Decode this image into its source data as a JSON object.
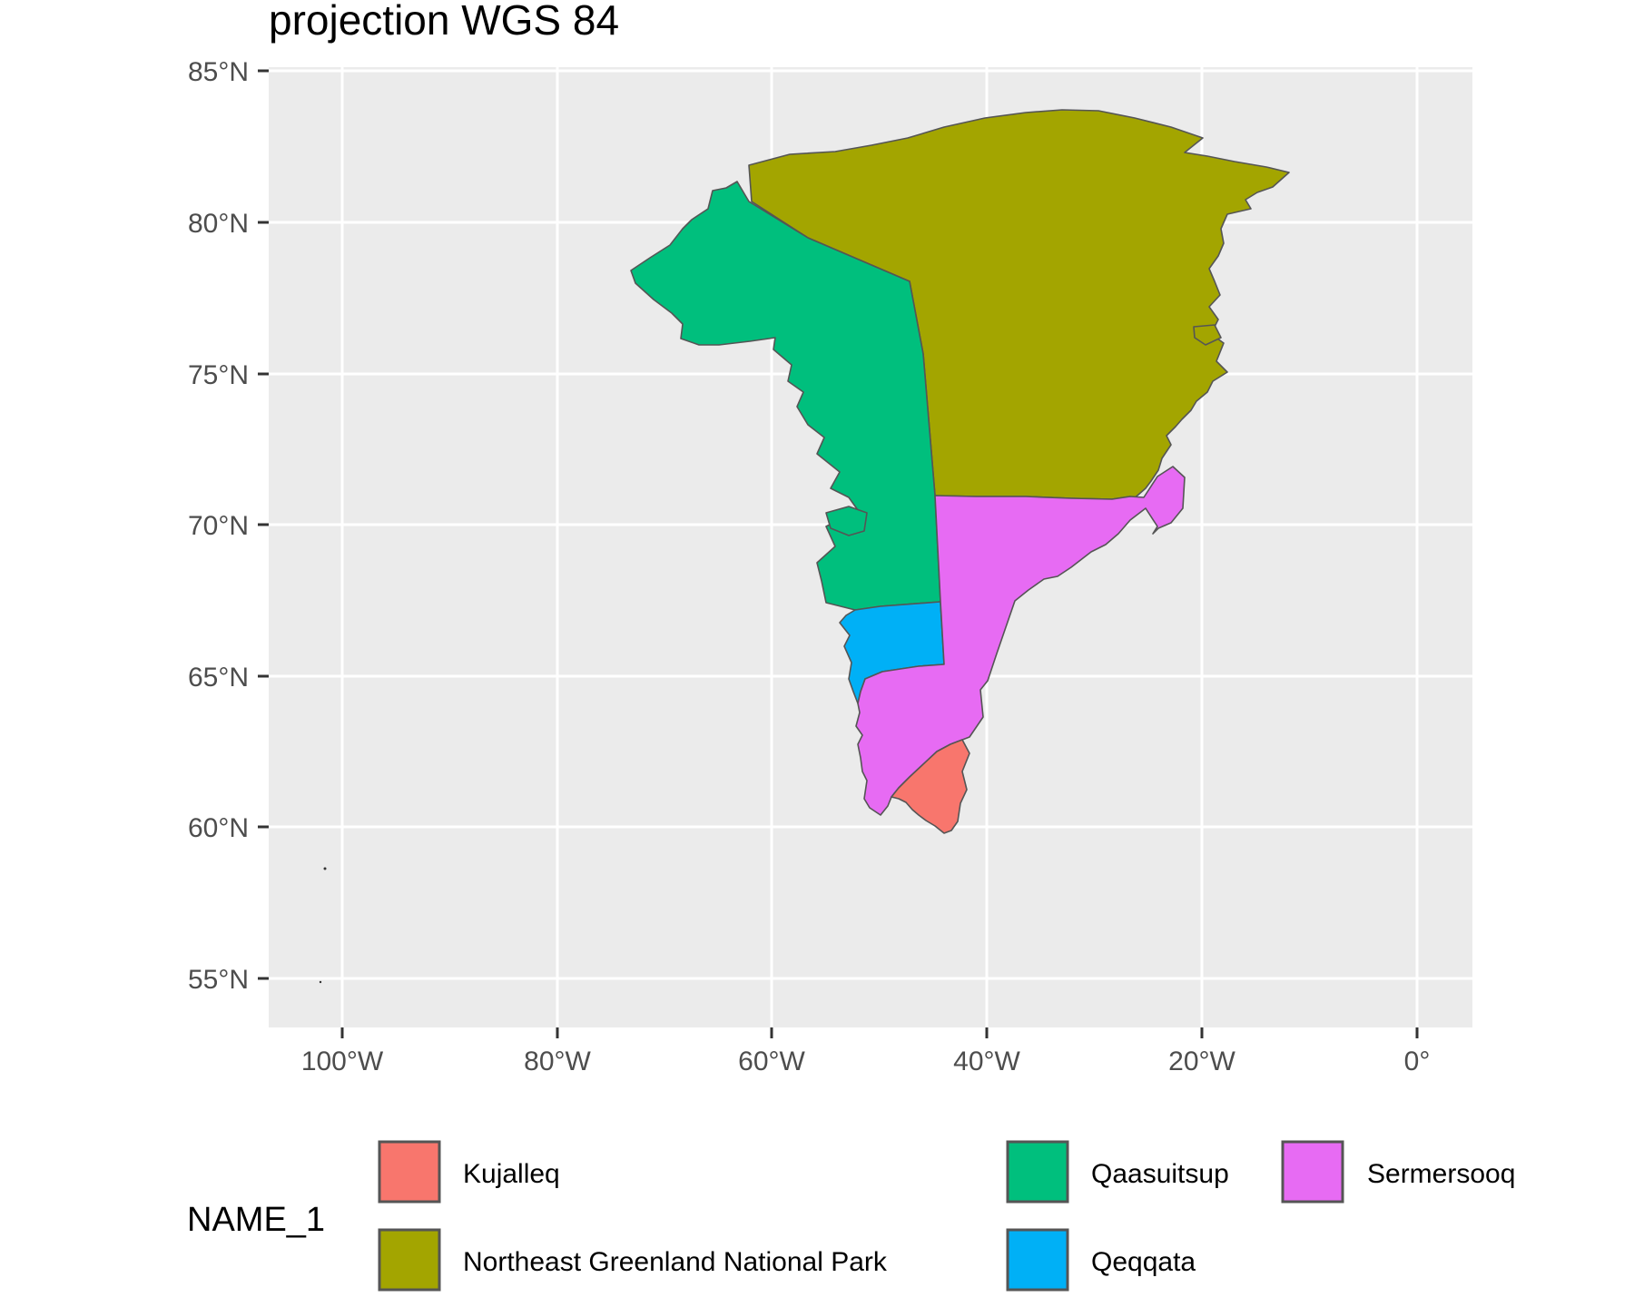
{
  "title": "projection WGS 84",
  "map": {
    "y_ticks": [
      "85°N",
      "80°N",
      "75°N",
      "70°N",
      "65°N",
      "60°N",
      "55°N"
    ],
    "x_ticks": [
      "100°W",
      "80°W",
      "60°W",
      "40°W",
      "20°W",
      "0°"
    ],
    "panel_background": "#ebebeb",
    "grid_color": "#ffffff",
    "border_color": "#555555"
  },
  "legend": {
    "title": "NAME_1",
    "items": [
      {
        "label": "Kujalleq",
        "color": "#f8766d"
      },
      {
        "label": "Qaasuitsup",
        "color": "#00bf7d"
      },
      {
        "label": "Sermersooq",
        "color": "#e76bf3"
      },
      {
        "label": "Northeast Greenland National Park",
        "color": "#a3a500"
      },
      {
        "label": "Qeqqata",
        "color": "#00b0f6"
      }
    ]
  }
}
